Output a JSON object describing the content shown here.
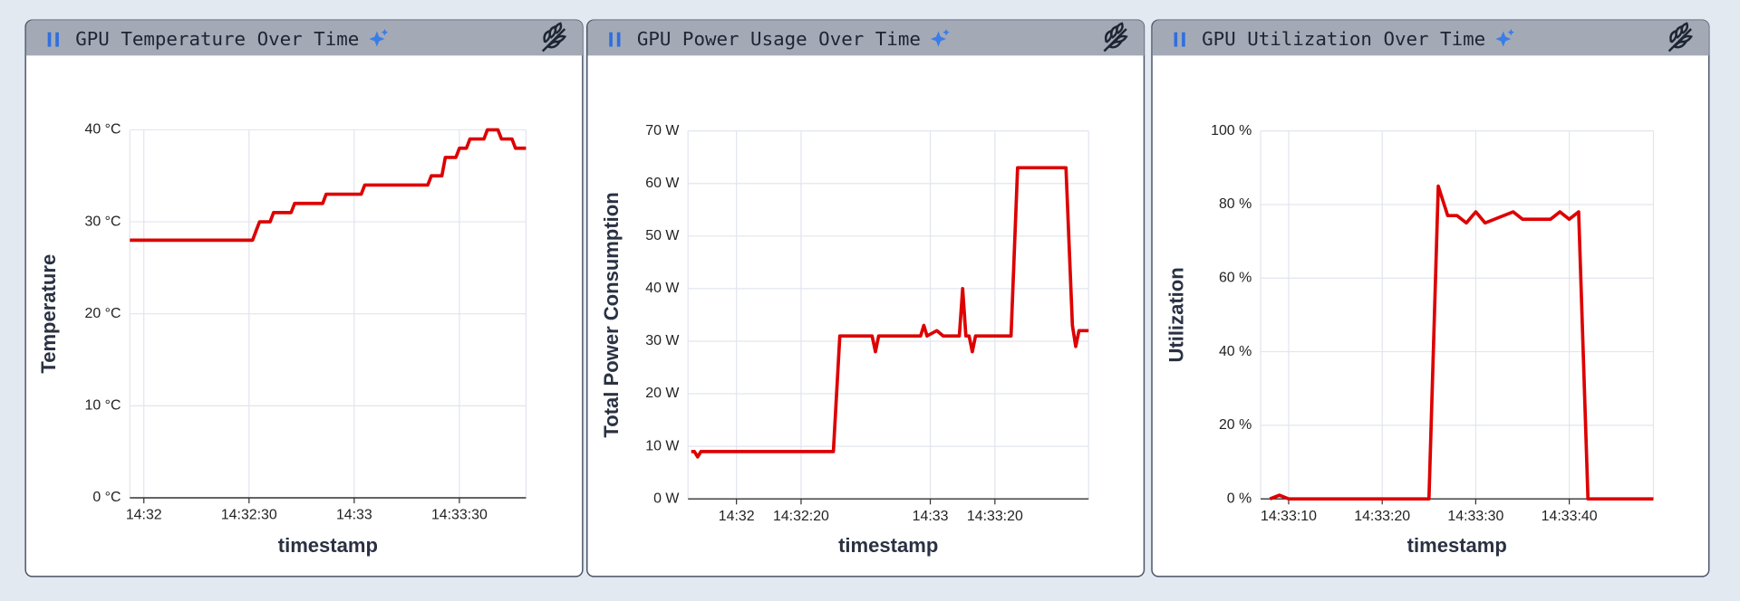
{
  "chart_data": [
    {
      "type": "line",
      "title": "GPU Temperature Over Time",
      "x_label": "timestamp",
      "y_label": "Temperature",
      "color": "#dd0000",
      "grid": true,
      "xlim": [
        "14:31:56",
        "14:33:49"
      ],
      "xticks": [
        {
          "value": "14:32:00",
          "label": "14:32"
        },
        {
          "value": "14:32:30",
          "label": "14:32:30"
        },
        {
          "value": "14:33:00",
          "label": "14:33"
        },
        {
          "value": "14:33:30",
          "label": "14:33:30"
        }
      ],
      "ylim": [
        0,
        40
      ],
      "yticks": [
        {
          "value": 0,
          "label": "0 °C"
        },
        {
          "value": 10,
          "label": "10 °C"
        },
        {
          "value": 20,
          "label": "20 °C"
        },
        {
          "value": 30,
          "label": "30 °C"
        },
        {
          "value": 40,
          "label": "40 °C"
        }
      ],
      "x": [
        "14:31:56",
        "14:32:31",
        "14:32:32",
        "14:32:33",
        "14:32:36",
        "14:32:37",
        "14:32:42",
        "14:32:43",
        "14:32:51",
        "14:32:52",
        "14:33:02",
        "14:33:03",
        "14:33:21",
        "14:33:22",
        "14:33:25",
        "14:33:26",
        "14:33:29",
        "14:33:30",
        "14:33:32",
        "14:33:33",
        "14:33:37",
        "14:33:38",
        "14:33:41",
        "14:33:42",
        "14:33:45",
        "14:33:46",
        "14:33:49"
      ],
      "values": [
        28,
        28,
        29,
        30,
        30,
        31,
        31,
        32,
        32,
        33,
        33,
        34,
        34,
        35,
        35,
        37,
        37,
        38,
        38,
        39,
        39,
        40,
        40,
        39,
        39,
        38,
        38
      ]
    },
    {
      "type": "line",
      "title": "GPU Power Usage Over Time",
      "x_label": "timestamp",
      "y_label": "Total Power Consumption",
      "color": "#dd0000",
      "grid": true,
      "xlim": [
        "14:31:45",
        "14:33:49"
      ],
      "xticks": [
        {
          "value": "14:32:00",
          "label": "14:32"
        },
        {
          "value": "14:32:20",
          "label": "14:32:20"
        },
        {
          "value": "14:33:00",
          "label": "14:33"
        },
        {
          "value": "14:33:20",
          "label": "14:33:20"
        }
      ],
      "ylim": [
        0,
        70
      ],
      "yticks": [
        {
          "value": 0,
          "label": "0 W"
        },
        {
          "value": 10,
          "label": "10 W"
        },
        {
          "value": 20,
          "label": "20 W"
        },
        {
          "value": 30,
          "label": "30 W"
        },
        {
          "value": 40,
          "label": "40 W"
        },
        {
          "value": 50,
          "label": "50 W"
        },
        {
          "value": 60,
          "label": "60 W"
        },
        {
          "value": 70,
          "label": "70 W"
        }
      ],
      "x": [
        "14:31:46",
        "14:31:47",
        "14:31:48",
        "14:31:49",
        "14:32:30",
        "14:32:32",
        "14:32:42",
        "14:32:43",
        "14:32:44",
        "14:32:57",
        "14:32:58",
        "14:32:59",
        "14:33:02",
        "14:33:04",
        "14:33:09",
        "14:33:10",
        "14:33:11",
        "14:33:12",
        "14:33:13",
        "14:33:14",
        "14:33:25",
        "14:33:27",
        "14:33:41",
        "14:33:42",
        "14:33:44",
        "14:33:45",
        "14:33:46",
        "14:33:49"
      ],
      "values": [
        9,
        9,
        8,
        9,
        9,
        31,
        31,
        28,
        31,
        31,
        33,
        31,
        32,
        31,
        31,
        40,
        31,
        31,
        28,
        31,
        31,
        63,
        63,
        63,
        33,
        29,
        32,
        32
      ]
    },
    {
      "type": "line",
      "title": "GPU Utilization Over Time",
      "x_label": "timestamp",
      "y_label": "Utilization",
      "color": "#dd0000",
      "grid": true,
      "xlim": [
        "14:33:07",
        "14:33:49"
      ],
      "xticks": [
        {
          "value": "14:33:10",
          "label": "14:33:10"
        },
        {
          "value": "14:33:20",
          "label": "14:33:20"
        },
        {
          "value": "14:33:30",
          "label": "14:33:30"
        },
        {
          "value": "14:33:40",
          "label": "14:33:40"
        }
      ],
      "ylim": [
        0,
        100
      ],
      "yticks": [
        {
          "value": 0,
          "label": "0 %"
        },
        {
          "value": 20,
          "label": "20 %"
        },
        {
          "value": 40,
          "label": "40 %"
        },
        {
          "value": 60,
          "label": "60 %"
        },
        {
          "value": 80,
          "label": "80 %"
        },
        {
          "value": 100,
          "label": "100 %"
        }
      ],
      "x": [
        "14:33:08",
        "14:33:09",
        "14:33:10",
        "14:33:25",
        "14:33:26",
        "14:33:27",
        "14:33:28",
        "14:33:29",
        "14:33:30",
        "14:33:31",
        "14:33:34",
        "14:33:35",
        "14:33:38",
        "14:33:39",
        "14:33:40",
        "14:33:41",
        "14:33:42",
        "14:33:49"
      ],
      "values": [
        0,
        1,
        0,
        0,
        85,
        77,
        77,
        75,
        78,
        75,
        78,
        76,
        76,
        78,
        76,
        78,
        0,
        0
      ]
    }
  ]
}
